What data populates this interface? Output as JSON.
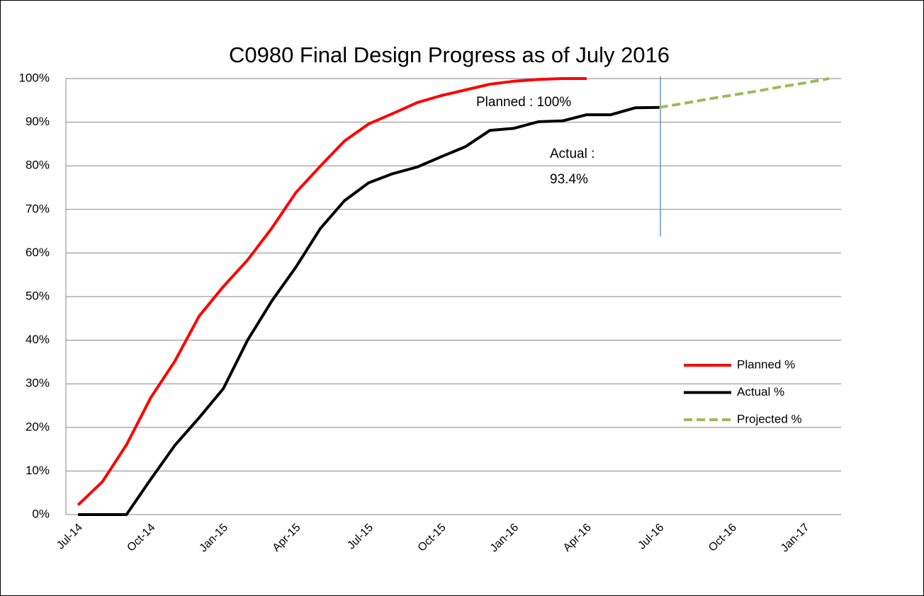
{
  "chart_data": {
    "type": "line",
    "title": "C0980 Final Design Progress as of July 2016",
    "categories": [
      "Jul-14",
      null,
      null,
      "Oct-14",
      null,
      null,
      "Jan-15",
      null,
      null,
      "Apr-15",
      null,
      null,
      "Jul-15",
      null,
      null,
      "Oct-15",
      null,
      null,
      "Jan-16",
      null,
      null,
      "Apr-16",
      null,
      null,
      "Jul-16",
      null,
      null,
      "Oct-16",
      null,
      null,
      "Jan-17",
      null
    ],
    "series": [
      {
        "name": "Planned %",
        "color": "#ff0000",
        "dashed": false,
        "values": [
          2.2,
          7.5,
          16,
          26.8,
          35.2,
          45.5,
          52.3,
          58.4,
          65.7,
          73.9,
          79.9,
          85.7,
          89.6,
          92,
          94.5,
          96.1,
          97.4,
          98.7,
          99.4,
          99.8,
          100,
          100,
          null,
          null,
          null,
          null,
          null,
          null,
          null,
          null,
          null,
          null
        ]
      },
      {
        "name": "Actual %",
        "color": "#000000",
        "dashed": false,
        "values": [
          0,
          0,
          0,
          8.1,
          15.9,
          22.2,
          28.9,
          40,
          49,
          56.8,
          65.6,
          72,
          76.1,
          78.2,
          79.7,
          82.1,
          84.4,
          88.1,
          88.6,
          90.1,
          90.3,
          91.7,
          91.7,
          93.3,
          93.4,
          null,
          null,
          null,
          null,
          null,
          null,
          null
        ]
      },
      {
        "name": "Projected %",
        "color": "#9bbb59",
        "dashed": true,
        "values": [
          null,
          null,
          null,
          null,
          null,
          null,
          null,
          null,
          null,
          null,
          null,
          null,
          null,
          null,
          null,
          null,
          null,
          null,
          null,
          null,
          null,
          null,
          null,
          null,
          93.4,
          94.3,
          95.3,
          96.2,
          97.1,
          98.1,
          99,
          100
        ]
      }
    ],
    "ylim": [
      0,
      100
    ],
    "yticks": [
      {
        "value": 0,
        "label": "0%"
      },
      {
        "value": 10,
        "label": "10%"
      },
      {
        "value": 20,
        "label": "20%"
      },
      {
        "value": 30,
        "label": "30%"
      },
      {
        "value": 40,
        "label": "40%"
      },
      {
        "value": 50,
        "label": "50%"
      },
      {
        "value": 60,
        "label": "60%"
      },
      {
        "value": 70,
        "label": "70%"
      },
      {
        "value": 80,
        "label": "80%"
      },
      {
        "value": 90,
        "label": "90%"
      },
      {
        "value": 100,
        "label": "100%"
      }
    ],
    "grid": true,
    "legend": "right",
    "annotations": [
      "Planned : 100%",
      "Actual :",
      "93.4%"
    ]
  }
}
